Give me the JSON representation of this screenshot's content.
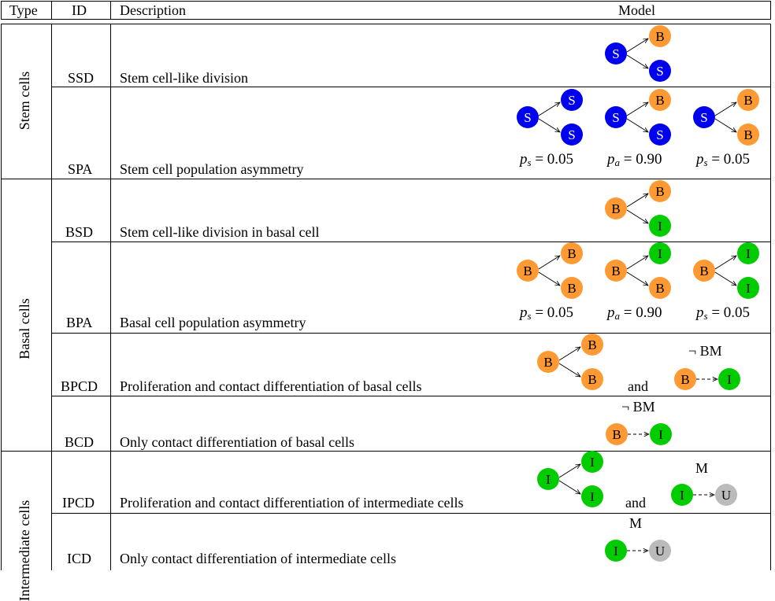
{
  "header": {
    "type": "Type",
    "id": "ID",
    "description": "Description",
    "model": "Model"
  },
  "groups": {
    "stem": "Stem cells",
    "basal": "Basal cells",
    "intermediate": "Intermediate cells"
  },
  "rows": {
    "ssd": {
      "id": "SSD",
      "description": "Stem cell-like division"
    },
    "spa": {
      "id": "SPA",
      "description": "Stem cell population asymmetry"
    },
    "bsd": {
      "id": "BSD",
      "description": "Stem cell-like division in basal cell"
    },
    "bpa": {
      "id": "BPA",
      "description": "Basal cell population asymmetry"
    },
    "bpcd": {
      "id": "BPCD",
      "description": "Proliferation and contact differentiation of basal cells"
    },
    "bcd": {
      "id": "BCD",
      "description": "Only contact differentiation of basal cells"
    },
    "ipcd": {
      "id": "IPCD",
      "description": "Proliferation and contact differentiation of intermediate cells"
    },
    "icd": {
      "id": "ICD",
      "description": "Only contact differentiation of intermediate cells"
    }
  },
  "labels": {
    "and": "and",
    "not_bm": "¬ BM",
    "m": "M",
    "ps": "p",
    "ps_sub": "s",
    "pa_sub": "a",
    "ps_val": "= 0.05",
    "pa_val": "= 0.90"
  },
  "cells": {
    "S": "S",
    "B": "B",
    "I": "I",
    "U": "U"
  },
  "colors": {
    "S": "#0000ee",
    "B": "#ff9933",
    "I": "#00cc00",
    "U": "#bbbbbb",
    "S_text": "#ffffff",
    "other_text": "#000000"
  }
}
